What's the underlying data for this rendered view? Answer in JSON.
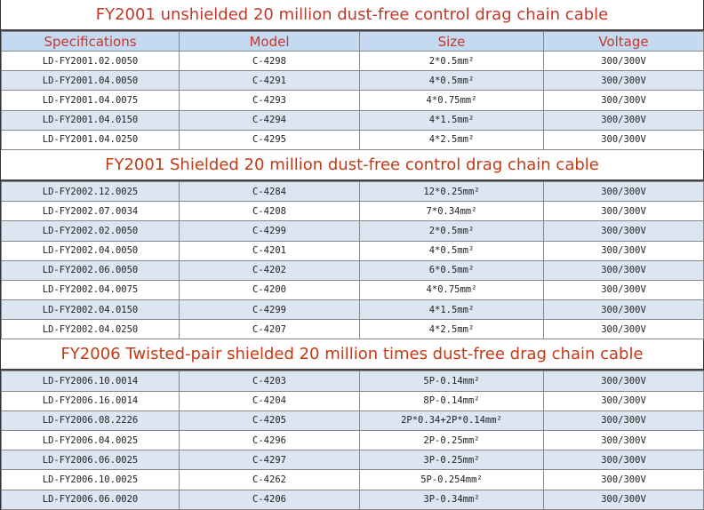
{
  "header": {
    "specifications": "Specifications",
    "model": "Model",
    "size": "Size",
    "voltage": "Voltage"
  },
  "sections": [
    {
      "title": "FY2001 unshielded 20 million dust-free control drag chain cable",
      "rows": [
        [
          "LD-FY2001.02.0050",
          "C-4298",
          "2*0.5mm²",
          "300/300V"
        ],
        [
          "LD-FY2001.04.0050",
          "C-4291",
          "4*0.5mm²",
          "300/300V"
        ],
        [
          "LD-FY2001.04.0075",
          "C-4293",
          "4*0.75mm²",
          "300/300V"
        ],
        [
          "LD-FY2001.04.0150",
          "C-4294",
          "4*1.5mm²",
          "300/300V"
        ],
        [
          "LD-FY2001.04.0250",
          "C-4295",
          "4*2.5mm²",
          "300/300V"
        ]
      ]
    },
    {
      "title": "FY2001 Shielded 20 million dust-free control drag chain cable",
      "rows": [
        [
          "LD-FY2002.12.0025",
          "C-4284",
          "12*0.25mm²",
          "300/300V"
        ],
        [
          "LD-FY2002.07.0034",
          "C-4208",
          "7*0.34mm²",
          "300/300V"
        ],
        [
          "LD-FY2002.02.0050",
          "C-4299",
          "2*0.5mm²",
          "300/300V"
        ],
        [
          "LD-FY2002.04.0050",
          "C-4201",
          "4*0.5mm²",
          "300/300V"
        ],
        [
          "LD-FY2002.06.0050",
          "C-4202",
          "6*0.5mm²",
          "300/300V"
        ],
        [
          "LD-FY2002.04.0075",
          "C-4200",
          "4*0.75mm²",
          "300/300V"
        ],
        [
          "LD-FY2002.04.0150",
          "C-4299",
          "4*1.5mm²",
          "300/300V"
        ],
        [
          "LD-FY2002.04.0250",
          "C-4207",
          "4*2.5mm²",
          "300/300V"
        ]
      ]
    },
    {
      "title": "FY2006 Twisted-pair shielded 20 million times dust-free drag chain cable",
      "rows": [
        [
          "LD-FY2006.10.0014",
          "C-4203",
          "5P-0.14mm²",
          "300/300V"
        ],
        [
          "LD-FY2006.16.0014",
          "C-4204",
          "8P-0.14mm²",
          "300/300V"
        ],
        [
          "LD-FY2006.08.2226",
          "C-4205",
          "2P*0.34+2P*0.14mm²",
          "300/300V"
        ],
        [
          "LD-FY2006.04.0025",
          "C-4296",
          "2P-0.25mm²",
          "300/300V"
        ],
        [
          "LD-FY2006.06.0025",
          "C-4297",
          "3P-0.25mm²",
          "300/300V"
        ],
        [
          "LD-FY2006.10.0025",
          "C-4262",
          "5P-0.254mm²",
          "300/300V"
        ],
        [
          "LD-FY2006.06.0020",
          "C-4206",
          "3P-0.34mm²",
          "300/300V"
        ]
      ]
    }
  ]
}
